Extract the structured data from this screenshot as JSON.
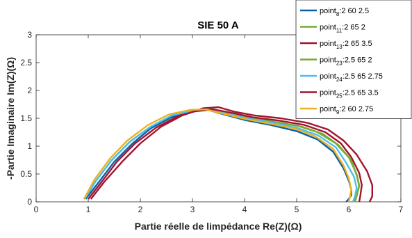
{
  "chart_data": {
    "type": "line",
    "title": "SIE 50 A",
    "xlabel": "Partie réelle de limpédance Re(Z)(Ω)",
    "ylabel": "-Partie Imaginaire Im(Z)(Ω)",
    "xlim": [
      0,
      7
    ],
    "ylim": [
      0,
      3
    ],
    "xticks": [
      "0",
      "1",
      "2",
      "3",
      "4",
      "5",
      "6",
      "7"
    ],
    "yticks": [
      "0",
      "0.5",
      "1",
      "1.5",
      "2",
      "2.5",
      "3"
    ],
    "grid": false,
    "legend_position": "top-right",
    "series": [
      {
        "name": "point8:2 60 2.5",
        "legend": {
          "base": "point",
          "sub": "8",
          "rest": ":2 60 2.5"
        },
        "color": "#0b5ea8",
        "x": [
          0.95,
          1.2,
          1.5,
          1.85,
          2.2,
          2.6,
          3.0,
          3.3,
          3.6,
          4.0,
          4.5,
          5.0,
          5.4,
          5.7,
          5.9,
          6.0,
          6.05,
          6.05,
          6.0,
          5.95
        ],
        "y": [
          0.05,
          0.35,
          0.72,
          1.05,
          1.32,
          1.52,
          1.62,
          1.65,
          1.57,
          1.47,
          1.38,
          1.27,
          1.12,
          0.9,
          0.6,
          0.38,
          0.22,
          0.12,
          0.05,
          0.0
        ]
      },
      {
        "name": "point11:2 65 2",
        "legend": {
          "base": "point",
          "sub": "11",
          "rest": ":2 65 2"
        },
        "color": "#77ac30",
        "x": [
          0.92,
          1.15,
          1.45,
          1.8,
          2.2,
          2.6,
          3.0,
          3.3,
          3.6,
          4.0,
          4.5,
          5.0,
          5.4,
          5.75,
          6.0,
          6.15,
          6.2,
          6.15,
          6.1
        ],
        "y": [
          0.05,
          0.38,
          0.75,
          1.08,
          1.35,
          1.55,
          1.64,
          1.66,
          1.6,
          1.52,
          1.45,
          1.37,
          1.25,
          1.05,
          0.8,
          0.5,
          0.3,
          0.1,
          0.0
        ]
      },
      {
        "name": "point13:2 65 3.5",
        "legend": {
          "base": "point",
          "sub": "13",
          "rest": ":2 65 3.5"
        },
        "color": "#a2142f",
        "x": [
          1.05,
          1.3,
          1.65,
          2.0,
          2.4,
          2.8,
          3.2,
          3.5,
          3.8,
          4.2,
          4.7,
          5.2,
          5.6,
          5.9,
          6.15,
          6.35,
          6.45,
          6.45,
          6.4
        ],
        "y": [
          0.05,
          0.35,
          0.72,
          1.05,
          1.35,
          1.55,
          1.68,
          1.7,
          1.62,
          1.55,
          1.5,
          1.42,
          1.3,
          1.1,
          0.85,
          0.55,
          0.3,
          0.1,
          0.0
        ]
      },
      {
        "name": "point23:2.5 65 2",
        "legend": {
          "base": "point",
          "sub": "23",
          "rest": ":2.5 65 2"
        },
        "color": "#77ac30",
        "x": [
          0.93,
          1.15,
          1.45,
          1.8,
          2.2,
          2.6,
          3.0,
          3.35,
          3.7,
          4.1,
          4.6,
          5.1,
          5.5,
          5.8,
          6.05,
          6.15,
          6.2,
          6.15,
          6.12
        ],
        "y": [
          0.05,
          0.38,
          0.75,
          1.08,
          1.35,
          1.55,
          1.65,
          1.66,
          1.58,
          1.5,
          1.43,
          1.35,
          1.22,
          1.02,
          0.75,
          0.48,
          0.28,
          0.1,
          0.0
        ]
      },
      {
        "name": "point24:2.5 65 2.75",
        "legend": {
          "base": "point",
          "sub": "24",
          "rest": ":2.5 65 2.75"
        },
        "color": "#4dbeee",
        "x": [
          0.93,
          1.15,
          1.45,
          1.8,
          2.2,
          2.6,
          3.0,
          3.3,
          3.65,
          4.05,
          4.55,
          5.0,
          5.4,
          5.75,
          5.95,
          6.1,
          6.15,
          6.12,
          6.08
        ],
        "y": [
          0.05,
          0.38,
          0.75,
          1.08,
          1.35,
          1.55,
          1.64,
          1.66,
          1.58,
          1.5,
          1.42,
          1.33,
          1.2,
          0.98,
          0.7,
          0.45,
          0.25,
          0.1,
          0.0
        ]
      },
      {
        "name": "point25:2.5 65 3.5",
        "legend": {
          "base": "point",
          "sub": "25",
          "rest": ":2.5 65 3.5"
        },
        "color": "#a2142f",
        "x": [
          1.0,
          1.25,
          1.55,
          1.9,
          2.3,
          2.7,
          3.1,
          3.4,
          3.75,
          4.15,
          4.65,
          5.15,
          5.55,
          5.85,
          6.05,
          6.2,
          6.25,
          6.22,
          6.2
        ],
        "y": [
          0.05,
          0.35,
          0.72,
          1.05,
          1.33,
          1.53,
          1.64,
          1.66,
          1.6,
          1.52,
          1.46,
          1.38,
          1.25,
          1.05,
          0.8,
          0.52,
          0.3,
          0.1,
          0.0
        ]
      },
      {
        "name": "point9:2 60 2.75",
        "legend": {
          "base": "point",
          "sub": "9",
          "rest": ":2 60 2.75"
        },
        "color": "#edb120",
        "x": [
          0.92,
          1.12,
          1.42,
          1.75,
          2.15,
          2.55,
          2.95,
          3.25,
          3.6,
          4.0,
          4.45,
          4.95,
          5.35,
          5.7,
          5.9,
          6.0,
          6.05,
          6.02,
          6.0
        ],
        "y": [
          0.05,
          0.4,
          0.78,
          1.1,
          1.38,
          1.57,
          1.65,
          1.66,
          1.58,
          1.49,
          1.41,
          1.32,
          1.18,
          0.95,
          0.65,
          0.42,
          0.22,
          0.08,
          0.0
        ]
      }
    ]
  }
}
